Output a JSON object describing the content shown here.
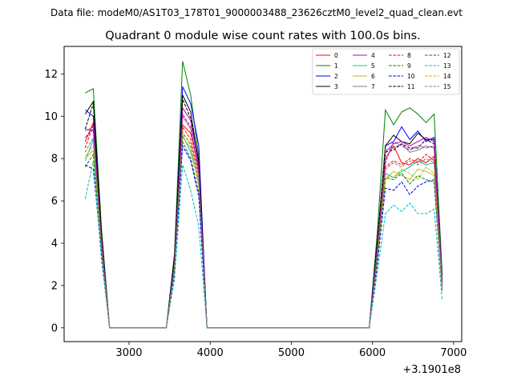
{
  "suptitle": "Data file: modeM0/AS1T03_178T01_9000003488_23626cztM0_level2_quad_clean.evt",
  "chart_data": {
    "type": "line",
    "title": "Quadrant 0 module wise count rates with 100.0s bins.",
    "xlabel": "",
    "ylabel": "",
    "x_offset_label": "+3.1901e8",
    "xlim": [
      2200,
      7100
    ],
    "ylim": [
      -0.65,
      13.3
    ],
    "xticks": [
      3000,
      4000,
      5000,
      6000,
      7000
    ],
    "yticks": [
      0,
      2,
      4,
      6,
      8,
      10,
      12
    ],
    "grid": false,
    "legend_position": "top-right",
    "x": [
      2460,
      2560,
      2660,
      2760,
      2860,
      2960,
      3060,
      3160,
      3260,
      3360,
      3460,
      3560,
      3660,
      3760,
      3860,
      3960,
      4060,
      4160,
      4260,
      4360,
      4460,
      4560,
      4660,
      4760,
      4860,
      4960,
      5060,
      5160,
      5260,
      5360,
      5460,
      5560,
      5660,
      5760,
      5860,
      5960,
      6060,
      6160,
      6260,
      6360,
      6460,
      6560,
      6660,
      6760,
      6860
    ],
    "series": [
      {
        "name": "0",
        "color": "#ff0000",
        "dash": "solid",
        "values": [
          8.8,
          9.7,
          4.0,
          0,
          0,
          0,
          0,
          0,
          0,
          0,
          0,
          2.8,
          9.6,
          9.2,
          7.5,
          0,
          0,
          0,
          0,
          0,
          0,
          0,
          0,
          0,
          0,
          0,
          0,
          0,
          0,
          0,
          0,
          0,
          0,
          0,
          0,
          0,
          3.5,
          8.0,
          8.6,
          7.8,
          7.7,
          8.0,
          7.8,
          8.1,
          2.0
        ]
      },
      {
        "name": "1",
        "color": "#008000",
        "dash": "solid",
        "values": [
          11.1,
          11.3,
          4.7,
          0,
          0,
          0,
          0,
          0,
          0,
          0,
          0,
          3.5,
          12.6,
          11.0,
          8.1,
          0,
          0,
          0,
          0,
          0,
          0,
          0,
          0,
          0,
          0,
          0,
          0,
          0,
          0,
          0,
          0,
          0,
          0,
          0,
          0,
          0,
          4.5,
          10.3,
          9.6,
          10.2,
          10.4,
          10.1,
          9.7,
          10.1,
          2.5
        ]
      },
      {
        "name": "2",
        "color": "#0000ff",
        "dash": "solid",
        "values": [
          10.3,
          10.0,
          4.3,
          0,
          0,
          0,
          0,
          0,
          0,
          0,
          0,
          3.2,
          11.4,
          10.6,
          8.6,
          0,
          0,
          0,
          0,
          0,
          0,
          0,
          0,
          0,
          0,
          0,
          0,
          0,
          0,
          0,
          0,
          0,
          0,
          0,
          0,
          0,
          4.0,
          8.6,
          8.8,
          9.5,
          8.9,
          9.3,
          8.8,
          9.0,
          2.3
        ]
      },
      {
        "name": "3",
        "color": "#000000",
        "dash": "solid",
        "values": [
          10.1,
          10.7,
          4.5,
          0,
          0,
          0,
          0,
          0,
          0,
          0,
          0,
          3.4,
          11.0,
          10.2,
          7.8,
          0,
          0,
          0,
          0,
          0,
          0,
          0,
          0,
          0,
          0,
          0,
          0,
          0,
          0,
          0,
          0,
          0,
          0,
          0,
          0,
          0,
          4.1,
          8.6,
          9.1,
          8.8,
          8.7,
          9.2,
          8.9,
          8.9,
          2.2
        ]
      },
      {
        "name": "4",
        "color": "#bf00bf",
        "dash": "solid",
        "values": [
          9.4,
          9.3,
          4.2,
          0,
          0,
          0,
          0,
          0,
          0,
          0,
          0,
          3.1,
          10.4,
          9.8,
          7.6,
          0,
          0,
          0,
          0,
          0,
          0,
          0,
          0,
          0,
          0,
          0,
          0,
          0,
          0,
          0,
          0,
          0,
          0,
          0,
          0,
          0,
          3.9,
          8.3,
          8.7,
          8.8,
          8.6,
          8.8,
          9.0,
          8.8,
          2.1
        ]
      },
      {
        "name": "5",
        "color": "#1abc9c",
        "dash": "solid",
        "values": [
          7.9,
          8.9,
          3.8,
          0,
          0,
          0,
          0,
          0,
          0,
          0,
          0,
          2.9,
          9.1,
          8.3,
          6.9,
          0,
          0,
          0,
          0,
          0,
          0,
          0,
          0,
          0,
          0,
          0,
          0,
          0,
          0,
          0,
          0,
          0,
          0,
          0,
          0,
          0,
          3.4,
          7.3,
          7.1,
          7.4,
          7.6,
          7.9,
          7.7,
          7.8,
          1.9
        ]
      },
      {
        "name": "6",
        "color": "#bcbd22",
        "dash": "solid",
        "values": [
          8.0,
          8.4,
          3.7,
          0,
          0,
          0,
          0,
          0,
          0,
          0,
          0,
          2.8,
          9.0,
          8.5,
          6.7,
          0,
          0,
          0,
          0,
          0,
          0,
          0,
          0,
          0,
          0,
          0,
          0,
          0,
          0,
          0,
          0,
          0,
          0,
          0,
          0,
          0,
          3.3,
          7.0,
          7.4,
          7.2,
          7.0,
          7.5,
          7.4,
          7.2,
          1.8
        ]
      },
      {
        "name": "7",
        "color": "#7f7f7f",
        "dash": "solid",
        "values": [
          9.3,
          9.5,
          4.1,
          0,
          0,
          0,
          0,
          0,
          0,
          0,
          0,
          3.0,
          10.0,
          9.4,
          7.3,
          0,
          0,
          0,
          0,
          0,
          0,
          0,
          0,
          0,
          0,
          0,
          0,
          0,
          0,
          0,
          0,
          0,
          0,
          0,
          0,
          0,
          3.8,
          8.4,
          8.5,
          8.7,
          8.3,
          8.4,
          8.6,
          8.5,
          2.1
        ]
      },
      {
        "name": "8",
        "color": "#ff0000",
        "dash": "dashed",
        "values": [
          8.5,
          9.6,
          4.0,
          0,
          0,
          0,
          0,
          0,
          0,
          0,
          0,
          2.9,
          9.5,
          8.9,
          7.2,
          0,
          0,
          0,
          0,
          0,
          0,
          0,
          0,
          0,
          0,
          0,
          0,
          0,
          0,
          0,
          0,
          0,
          0,
          0,
          0,
          0,
          3.6,
          7.6,
          7.9,
          7.7,
          8.0,
          7.8,
          8.2,
          7.9,
          2.0
        ]
      },
      {
        "name": "9",
        "color": "#008000",
        "dash": "dashed",
        "values": [
          7.6,
          8.2,
          3.6,
          0,
          0,
          0,
          0,
          0,
          0,
          0,
          0,
          2.7,
          8.8,
          8.0,
          6.4,
          0,
          0,
          0,
          0,
          0,
          0,
          0,
          0,
          0,
          0,
          0,
          0,
          0,
          0,
          0,
          0,
          0,
          0,
          0,
          0,
          0,
          3.2,
          7.1,
          7.0,
          7.3,
          6.8,
          7.2,
          7.0,
          6.9,
          1.7
        ]
      },
      {
        "name": "10",
        "color": "#0000ff",
        "dash": "dashed",
        "values": [
          7.7,
          7.5,
          3.5,
          0,
          0,
          0,
          0,
          0,
          0,
          0,
          0,
          2.6,
          8.6,
          7.9,
          6.2,
          0,
          0,
          0,
          0,
          0,
          0,
          0,
          0,
          0,
          0,
          0,
          0,
          0,
          0,
          0,
          0,
          0,
          0,
          0,
          0,
          0,
          3.0,
          6.6,
          6.5,
          6.9,
          6.3,
          6.7,
          6.9,
          7.0,
          1.7
        ]
      },
      {
        "name": "11",
        "color": "#000000",
        "dash": "dashed",
        "values": [
          9.4,
          10.6,
          4.4,
          0,
          0,
          0,
          0,
          0,
          0,
          0,
          0,
          3.3,
          10.8,
          9.9,
          7.9,
          0,
          0,
          0,
          0,
          0,
          0,
          0,
          0,
          0,
          0,
          0,
          0,
          0,
          0,
          0,
          0,
          0,
          0,
          0,
          0,
          0,
          4.0,
          8.3,
          8.4,
          8.7,
          8.5,
          8.5,
          8.9,
          8.7,
          2.2
        ]
      },
      {
        "name": "12",
        "color": "#bf00bf",
        "dash": "dashed",
        "values": [
          9.0,
          9.4,
          4.1,
          0,
          0,
          0,
          0,
          0,
          0,
          0,
          0,
          3.0,
          10.1,
          9.5,
          7.4,
          0,
          0,
          0,
          0,
          0,
          0,
          0,
          0,
          0,
          0,
          0,
          0,
          0,
          0,
          0,
          0,
          0,
          0,
          0,
          0,
          0,
          3.7,
          7.8,
          8.8,
          8.6,
          8.4,
          8.6,
          8.5,
          8.6,
          2.1
        ]
      },
      {
        "name": "13",
        "color": "#00bfbf",
        "dash": "dashed",
        "values": [
          6.1,
          7.9,
          3.2,
          0,
          0,
          0,
          0,
          0,
          0,
          0,
          0,
          2.3,
          7.7,
          6.5,
          4.8,
          0,
          0,
          0,
          0,
          0,
          0,
          0,
          0,
          0,
          0,
          0,
          0,
          0,
          0,
          0,
          0,
          0,
          0,
          0,
          0,
          0,
          2.6,
          5.4,
          5.8,
          5.5,
          5.9,
          5.4,
          5.4,
          5.6,
          1.3
        ]
      },
      {
        "name": "14",
        "color": "#bfbf00",
        "dash": "dashed",
        "values": [
          8.1,
          8.6,
          3.8,
          0,
          0,
          0,
          0,
          0,
          0,
          0,
          0,
          2.8,
          9.3,
          8.6,
          6.9,
          0,
          0,
          0,
          0,
          0,
          0,
          0,
          0,
          0,
          0,
          0,
          0,
          0,
          0,
          0,
          0,
          0,
          0,
          0,
          0,
          0,
          3.3,
          7.2,
          7.1,
          7.5,
          7.3,
          7.0,
          7.6,
          7.3,
          1.8
        ]
      },
      {
        "name": "15",
        "color": "#7f7f7f",
        "dash": "dashed",
        "values": [
          8.3,
          9.0,
          3.9,
          0,
          0,
          0,
          0,
          0,
          0,
          0,
          0,
          2.9,
          9.2,
          8.7,
          7.0,
          0,
          0,
          0,
          0,
          0,
          0,
          0,
          0,
          0,
          0,
          0,
          0,
          0,
          0,
          0,
          0,
          0,
          0,
          0,
          0,
          0,
          3.5,
          7.5,
          7.8,
          7.6,
          7.9,
          7.7,
          8.0,
          7.8,
          1.9
        ]
      }
    ]
  }
}
